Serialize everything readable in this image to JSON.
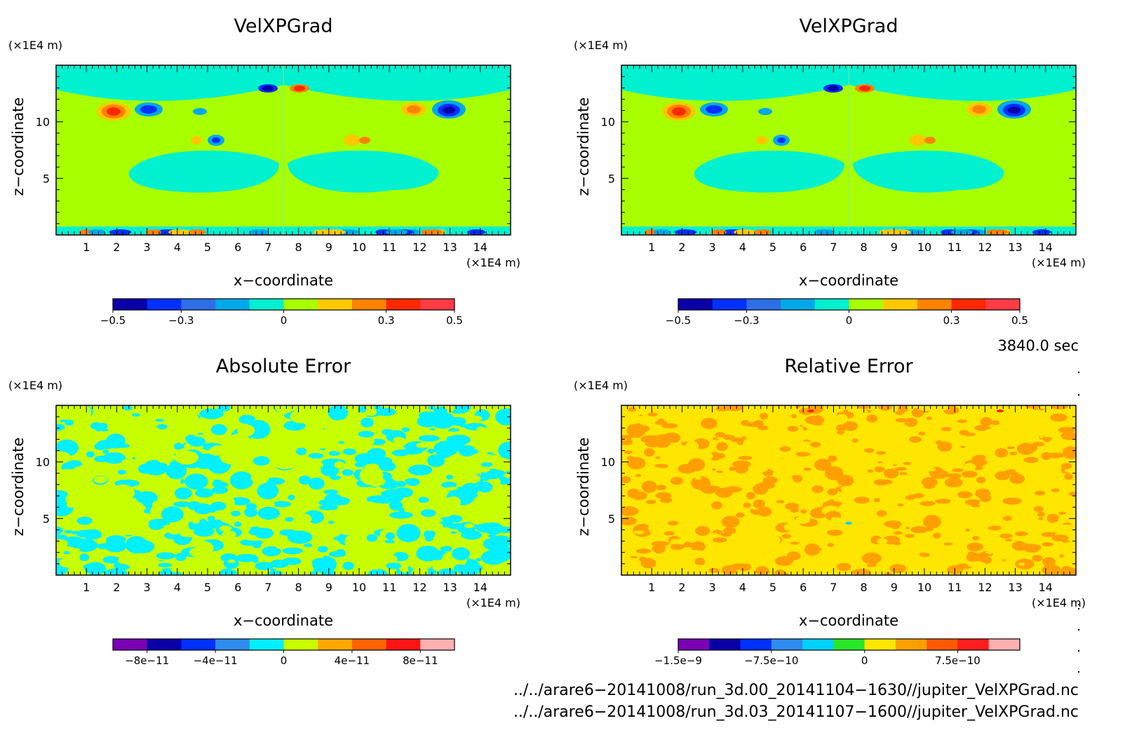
{
  "panels": [
    {
      "id": "velxpgrad-run00",
      "title": "VelXPGrad",
      "x_unit": "(×1E4 m)",
      "z_unit": "(×1E4 m)",
      "xlabel": "x−coordinate",
      "ylabel": "z−coordinate",
      "x_ticks": [
        "1",
        "2",
        "3",
        "4",
        "5",
        "6",
        "7",
        "8",
        "9",
        "10",
        "11",
        "12",
        "13",
        "14"
      ],
      "z_ticks": [
        "5",
        "10"
      ],
      "colorbar": {
        "colors": [
          "#0a00a8",
          "#0030ff",
          "#2e6ee6",
          "#00a8ea",
          "#00f0d0",
          "#a8ff00",
          "#ffc800",
          "#ff8200",
          "#ff2800",
          "#ff3c46"
        ],
        "labels": [
          "−0.5",
          "−0.3",
          "0",
          "0.3",
          "0.5"
        ]
      }
    },
    {
      "id": "velxpgrad-run03",
      "title": "VelXPGrad",
      "x_unit": "(×1E4 m)",
      "z_unit": "(×1E4 m)",
      "xlabel": "x−coordinate",
      "ylabel": "z−coordinate",
      "x_ticks": [
        "1",
        "2",
        "3",
        "4",
        "5",
        "6",
        "7",
        "8",
        "9",
        "10",
        "11",
        "12",
        "13",
        "14"
      ],
      "z_ticks": [
        "5",
        "10"
      ],
      "colorbar": {
        "colors": [
          "#0a00a8",
          "#0030ff",
          "#2e6ee6",
          "#00a8ea",
          "#00f0d0",
          "#a8ff00",
          "#ffc800",
          "#ff8200",
          "#ff2800",
          "#ff3c46"
        ],
        "labels": [
          "−0.5",
          "−0.3",
          "0",
          "0.3",
          "0.5"
        ]
      }
    },
    {
      "id": "absolute-error",
      "title": "Absolute Error",
      "x_unit": "(×1E4 m)",
      "z_unit": "(×1E4 m)",
      "xlabel": "x−coordinate",
      "ylabel": "z−coordinate",
      "x_ticks": [
        "1",
        "2",
        "3",
        "4",
        "5",
        "6",
        "7",
        "8",
        "9",
        "10",
        "11",
        "12",
        "13",
        "14"
      ],
      "z_ticks": [
        "5",
        "10"
      ],
      "colorbar": {
        "colors": [
          "#7a00b4",
          "#0a00a8",
          "#0030ff",
          "#2e8cee",
          "#00f0ff",
          "#c8ff00",
          "#ffa800",
          "#ff6400",
          "#ff1414",
          "#ffb0b0"
        ],
        "labels": [
          "−8e−11",
          "−4e−11",
          "0",
          "4e−11",
          "8e−11"
        ]
      }
    },
    {
      "id": "relative-error",
      "title": "Relative Error",
      "x_unit": "(×1E4 m)",
      "z_unit": "(×1E4 m)",
      "xlabel": "x−coordinate",
      "ylabel": "z−coordinate",
      "x_ticks": [
        "1",
        "2",
        "3",
        "4",
        "5",
        "6",
        "7",
        "8",
        "9",
        "10",
        "11",
        "12",
        "13",
        "14"
      ],
      "z_ticks": [
        "5",
        "10"
      ],
      "colorbar": {
        "colors": [
          "#7a00b4",
          "#0a00a8",
          "#0030ff",
          "#2e8cee",
          "#00d2ff",
          "#28e628",
          "#ffe600",
          "#ffa000",
          "#ff5a00",
          "#ff1e1e",
          "#ffb0b0"
        ],
        "labels": [
          "−1.5e−9",
          "−7.5e−10",
          "0",
          "7.5e−10"
        ]
      }
    }
  ],
  "chart_data": [
    {
      "type": "heatmap",
      "title": "VelXPGrad",
      "xlabel": "x−coordinate",
      "ylabel": "z−coordinate",
      "x_unit": "×1E4 m",
      "z_unit": "×1E4 m",
      "xlim": [
        0,
        15
      ],
      "zlim": [
        0,
        15
      ],
      "levels": [
        -0.5,
        -0.4,
        -0.3,
        -0.2,
        -0.1,
        0,
        0.1,
        0.2,
        0.3,
        0.4,
        0.5
      ],
      "colorbar_ticks": [
        -0.5,
        -0.3,
        0,
        0.3,
        0.5
      ]
    },
    {
      "type": "heatmap",
      "title": "VelXPGrad",
      "xlabel": "x−coordinate",
      "ylabel": "z−coordinate",
      "x_unit": "×1E4 m",
      "z_unit": "×1E4 m",
      "xlim": [
        0,
        15
      ],
      "zlim": [
        0,
        15
      ],
      "levels": [
        -0.5,
        -0.4,
        -0.3,
        -0.2,
        -0.1,
        0,
        0.1,
        0.2,
        0.3,
        0.4,
        0.5
      ],
      "colorbar_ticks": [
        -0.5,
        -0.3,
        0,
        0.3,
        0.5
      ]
    },
    {
      "type": "heatmap",
      "title": "Absolute Error",
      "xlabel": "x−coordinate",
      "ylabel": "z−coordinate",
      "x_unit": "×1E4 m",
      "z_unit": "×1E4 m",
      "xlim": [
        0,
        15
      ],
      "zlim": [
        0,
        15
      ],
      "levels": [
        -1e-10,
        -8e-11,
        -6e-11,
        -4e-11,
        -2e-11,
        0,
        2e-11,
        4e-11,
        6e-11,
        8e-11,
        1e-10
      ],
      "colorbar_ticks": [
        -8e-11,
        -4e-11,
        0,
        4e-11,
        8e-11
      ]
    },
    {
      "type": "heatmap",
      "title": "Relative Error",
      "xlabel": "x−coordinate",
      "ylabel": "z−coordinate",
      "x_unit": "×1E4 m",
      "z_unit": "×1E4 m",
      "xlim": [
        0,
        15
      ],
      "zlim": [
        0,
        15
      ],
      "levels": [
        -1.5e-09,
        -1.25e-09,
        -1e-09,
        -7.5e-10,
        -5e-10,
        -2.5e-10,
        0,
        2.5e-10,
        5e-10,
        7.5e-10,
        1e-09,
        1.25e-09
      ],
      "colorbar_ticks": [
        -1.5e-09,
        -7.5e-10,
        0,
        7.5e-10
      ]
    }
  ],
  "footer": {
    "time": "3840.0 sec",
    "file_a": "../../arare6−20141008/run_3d.00_20141104−1630//jupiter_VelXPGrad.nc",
    "file_b": "../../arare6−20141008/run_3d.03_20141107−1600//jupiter_VelXPGrad.nc"
  }
}
